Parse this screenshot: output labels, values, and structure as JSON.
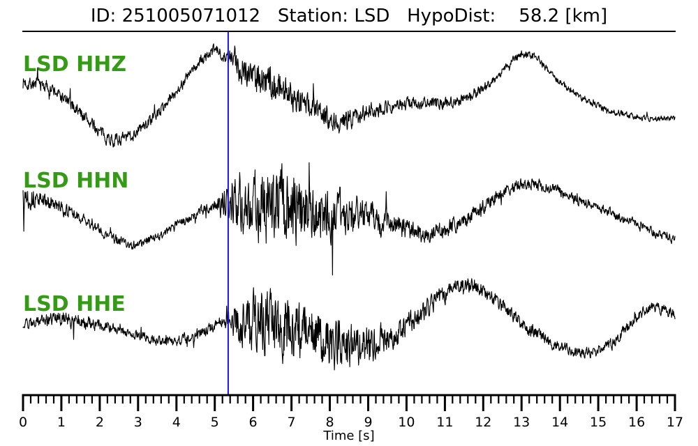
{
  "header": {
    "title": "ID: 251005071012   Station: LSD   HypoDist:    58.2 [km]"
  },
  "chart_data": {
    "type": "line",
    "title": "ID: 251005071012   Station: LSD   HypoDist:    58.2 [km]",
    "xlabel": "Time [s]",
    "x_range": [
      0,
      17
    ],
    "x_ticks": [
      0,
      1,
      2,
      3,
      4,
      5,
      6,
      7,
      8,
      9,
      10,
      11,
      12,
      13,
      14,
      15,
      16,
      17
    ],
    "x_minor_tick_step": 0.2,
    "grid": false,
    "legend_position": "none",
    "pick_time_s": 5.35,
    "colors": {
      "trace": "#000000",
      "pick_line": "#1414e6",
      "channel_label": "#359b17",
      "axis": "#000000"
    },
    "series": [
      {
        "name": "LSD HHZ",
        "seed": 7,
        "trend": [
          [
            0,
            0.28
          ],
          [
            0.6,
            0.2
          ],
          [
            1.3,
            -0.15
          ],
          [
            2.35,
            -0.75
          ],
          [
            3.3,
            -0.42
          ],
          [
            4.9,
            0.81
          ],
          [
            5.4,
            0.68
          ],
          [
            6.1,
            0.38
          ],
          [
            7.1,
            0.02
          ],
          [
            8.2,
            -0.42
          ],
          [
            9.1,
            -0.22
          ],
          [
            10.2,
            -0.1
          ],
          [
            11.2,
            -0.08
          ],
          [
            12.1,
            0.22
          ],
          [
            13.1,
            0.78
          ],
          [
            14.1,
            0.22
          ],
          [
            15.1,
            -0.18
          ],
          [
            16.2,
            -0.36
          ],
          [
            17,
            -0.38
          ]
        ],
        "noise_env": [
          [
            0,
            0.14
          ],
          [
            1,
            0.12
          ],
          [
            2.5,
            0.12
          ],
          [
            4,
            0.1
          ],
          [
            5.3,
            0.11
          ],
          [
            5.5,
            0.3
          ],
          [
            6.3,
            0.34
          ],
          [
            7.2,
            0.28
          ],
          [
            8.0,
            0.2
          ],
          [
            9,
            0.16
          ],
          [
            10,
            0.12
          ],
          [
            11.5,
            0.1
          ],
          [
            13,
            0.08
          ],
          [
            15,
            0.06
          ],
          [
            17,
            0.05
          ]
        ]
      },
      {
        "name": "LSD HHN",
        "seed": 13,
        "trend": [
          [
            0,
            0.3
          ],
          [
            0.4,
            0.18
          ],
          [
            1.2,
            -0.05
          ],
          [
            2.6,
            -0.6
          ],
          [
            3.1,
            -0.62
          ],
          [
            4.0,
            -0.3
          ],
          [
            5.0,
            0.08
          ],
          [
            5.35,
            0.12
          ],
          [
            6.0,
            0.1
          ],
          [
            7.0,
            0.02
          ],
          [
            8.0,
            -0.05
          ],
          [
            9.0,
            -0.15
          ],
          [
            10.6,
            -0.45
          ],
          [
            11.6,
            -0.15
          ],
          [
            12.8,
            0.4
          ],
          [
            13.5,
            0.42
          ],
          [
            14.5,
            0.15
          ],
          [
            15.5,
            -0.12
          ],
          [
            16.5,
            -0.42
          ],
          [
            17,
            -0.55
          ]
        ],
        "noise_env": [
          [
            0,
            0.3
          ],
          [
            0.4,
            0.15
          ],
          [
            1.5,
            0.1
          ],
          [
            3.5,
            0.09
          ],
          [
            5.0,
            0.11
          ],
          [
            5.45,
            0.5
          ],
          [
            6.0,
            0.55
          ],
          [
            6.5,
            0.75
          ],
          [
            7.3,
            0.65
          ],
          [
            8.0,
            0.48
          ],
          [
            8.8,
            0.32
          ],
          [
            9.6,
            0.22
          ],
          [
            10.5,
            0.17
          ],
          [
            12,
            0.13
          ],
          [
            13.5,
            0.11
          ],
          [
            15,
            0.09
          ],
          [
            17,
            0.08
          ]
        ]
      },
      {
        "name": "LSD HHE",
        "seed": 29,
        "trend": [
          [
            0,
            0.05
          ],
          [
            0.8,
            0.15
          ],
          [
            1.6,
            0.09
          ],
          [
            2.6,
            -0.05
          ],
          [
            3.8,
            -0.27
          ],
          [
            4.6,
            -0.1
          ],
          [
            5.35,
            0.1
          ],
          [
            6.3,
            0.08
          ],
          [
            7.2,
            -0.05
          ],
          [
            8.2,
            -0.27
          ],
          [
            9.2,
            -0.3
          ],
          [
            10.0,
            0.02
          ],
          [
            10.9,
            0.55
          ],
          [
            11.6,
            0.78
          ],
          [
            12.4,
            0.45
          ],
          [
            13.4,
            -0.12
          ],
          [
            14.5,
            -0.45
          ],
          [
            15.3,
            -0.3
          ],
          [
            16.3,
            0.33
          ],
          [
            17,
            0.25
          ]
        ],
        "noise_env": [
          [
            0,
            0.1
          ],
          [
            1.2,
            0.14
          ],
          [
            2.5,
            0.09
          ],
          [
            4.5,
            0.1
          ],
          [
            5.3,
            0.13
          ],
          [
            5.6,
            0.4
          ],
          [
            6.4,
            0.68
          ],
          [
            7.1,
            0.6
          ],
          [
            7.9,
            0.48
          ],
          [
            8.7,
            0.42
          ],
          [
            9.4,
            0.28
          ],
          [
            10.5,
            0.18
          ],
          [
            12,
            0.14
          ],
          [
            14,
            0.11
          ],
          [
            16,
            0.1
          ],
          [
            17,
            0.1
          ]
        ]
      }
    ]
  }
}
